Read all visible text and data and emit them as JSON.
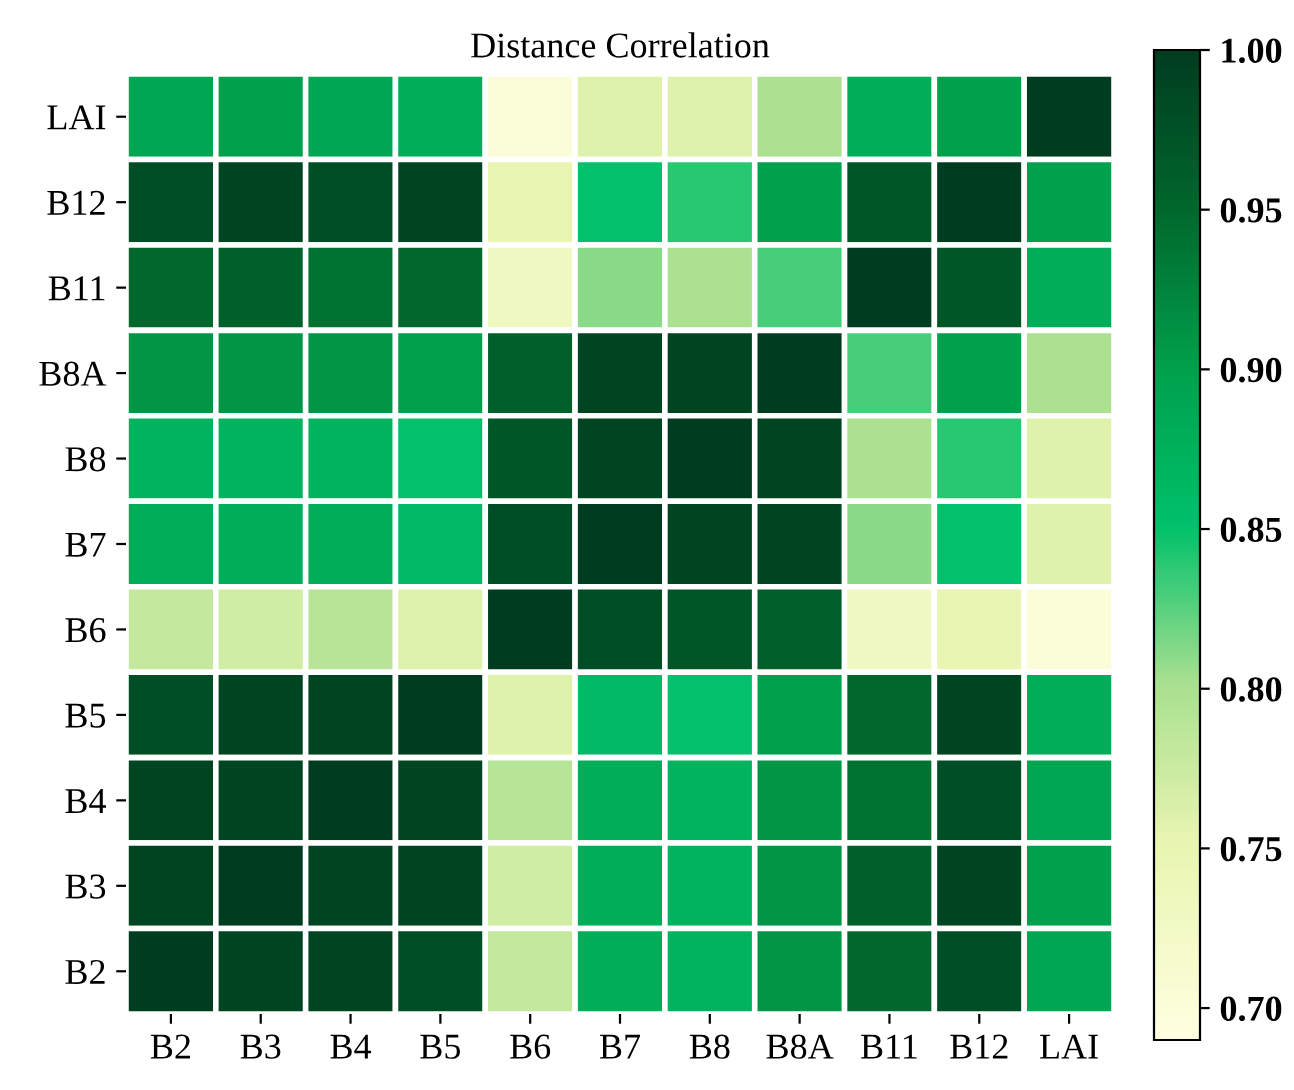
{
  "chart_data": {
    "type": "heatmap",
    "title": "Distance Correlation",
    "categories": [
      "B2",
      "B3",
      "B4",
      "B5",
      "B6",
      "B7",
      "B8",
      "B8A",
      "B11",
      "B12",
      "LAI"
    ],
    "y_categories": [
      "LAI",
      "B12",
      "B11",
      "B8A",
      "B8",
      "B7",
      "B6",
      "B5",
      "B4",
      "B3",
      "B2"
    ],
    "cells": [
      [
        0.89,
        0.9,
        0.89,
        0.88,
        0.7,
        0.76,
        0.76,
        0.8,
        0.88,
        0.9,
        1.0
      ],
      [
        0.98,
        0.99,
        0.98,
        0.99,
        0.75,
        0.85,
        0.84,
        0.9,
        0.97,
        1.0,
        0.9
      ],
      [
        0.95,
        0.96,
        0.94,
        0.95,
        0.73,
        0.81,
        0.8,
        0.83,
        1.0,
        0.97,
        0.88
      ],
      [
        0.91,
        0.91,
        0.91,
        0.9,
        0.96,
        0.99,
        0.99,
        1.0,
        0.83,
        0.9,
        0.8
      ],
      [
        0.87,
        0.87,
        0.87,
        0.85,
        0.97,
        0.99,
        1.0,
        0.99,
        0.8,
        0.84,
        0.76
      ],
      [
        0.88,
        0.88,
        0.88,
        0.86,
        0.98,
        1.0,
        0.99,
        0.99,
        0.81,
        0.85,
        0.76
      ],
      [
        0.78,
        0.77,
        0.79,
        0.76,
        1.0,
        0.98,
        0.97,
        0.96,
        0.73,
        0.75,
        0.7
      ],
      [
        0.98,
        0.99,
        0.99,
        1.0,
        0.76,
        0.86,
        0.85,
        0.9,
        0.95,
        0.99,
        0.88
      ],
      [
        0.99,
        0.99,
        1.0,
        0.99,
        0.79,
        0.88,
        0.87,
        0.91,
        0.94,
        0.98,
        0.89
      ],
      [
        0.99,
        1.0,
        0.99,
        0.99,
        0.77,
        0.88,
        0.87,
        0.91,
        0.96,
        0.99,
        0.9
      ],
      [
        1.0,
        0.99,
        0.99,
        0.98,
        0.78,
        0.88,
        0.87,
        0.91,
        0.95,
        0.98,
        0.89
      ]
    ],
    "clim": [
      0.69,
      1.0
    ],
    "cticks": [
      {
        "value": 0.7,
        "label": "0.70"
      },
      {
        "value": 0.75,
        "label": "0.75"
      },
      {
        "value": 0.8,
        "label": "0.80"
      },
      {
        "value": 0.85,
        "label": "0.85"
      },
      {
        "value": 0.9,
        "label": "0.90"
      },
      {
        "value": 0.95,
        "label": "0.95"
      },
      {
        "value": 1.0,
        "label": "1.00"
      }
    ]
  }
}
